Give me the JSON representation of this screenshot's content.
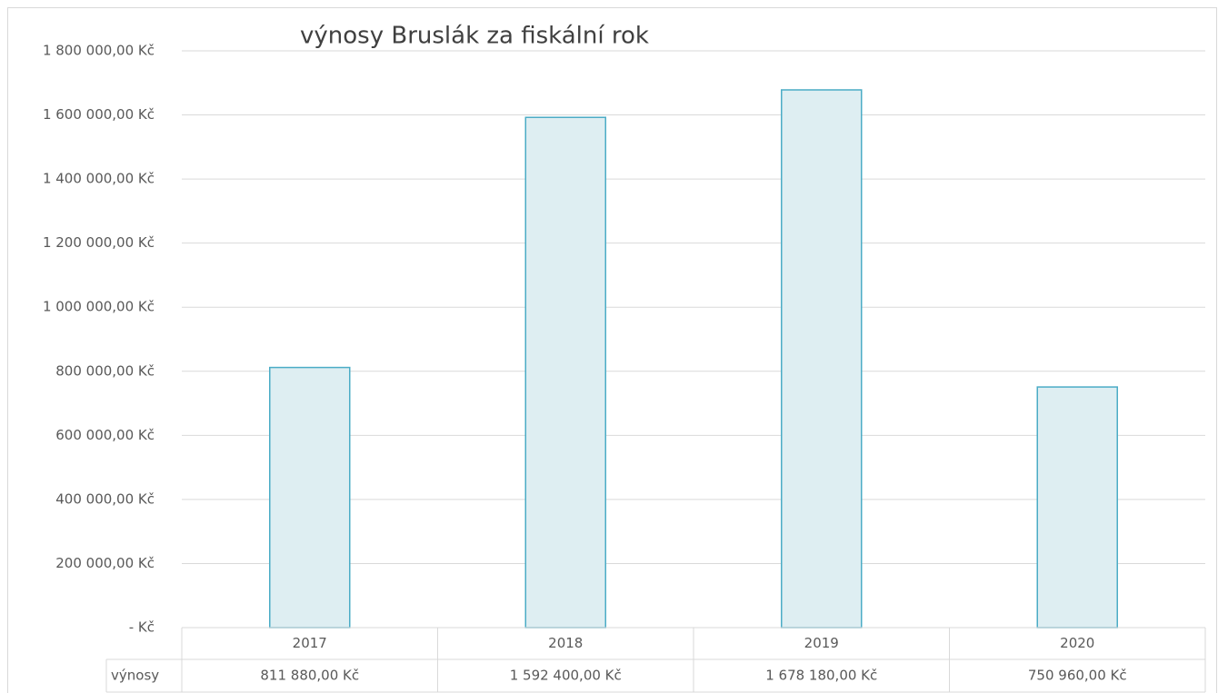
{
  "chart_data": {
    "type": "bar",
    "title": "výnosy Bruslák  za fiskální rok",
    "categories": [
      "2017",
      "2018",
      "2019",
      "2020"
    ],
    "series": [
      {
        "name": "výnosy",
        "color": "#4bacc6",
        "fill": "#deeef2",
        "values": [
          811880,
          1592400,
          1678180,
          750960
        ],
        "value_labels": [
          "811 880,00 Kč",
          "1 592 400,00 Kč",
          "1 678 180,00 Kč",
          "750 960,00 Kč"
        ]
      }
    ],
    "ylim": [
      0,
      1800000
    ],
    "yticks": [
      {
        "value": 0,
        "label": "-  Kč"
      },
      {
        "value": 200000,
        "label": "200 000,00 Kč"
      },
      {
        "value": 400000,
        "label": "400 000,00 Kč"
      },
      {
        "value": 600000,
        "label": "600 000,00 Kč"
      },
      {
        "value": 800000,
        "label": "800 000,00 Kč"
      },
      {
        "value": 1000000,
        "label": "1 000 000,00 Kč"
      },
      {
        "value": 1200000,
        "label": "1 200 000,00 Kč"
      },
      {
        "value": 1400000,
        "label": "1 400 000,00 Kč"
      },
      {
        "value": 1600000,
        "label": "1 600 000,00 Kč"
      },
      {
        "value": 1800000,
        "label": "1 800 000,00 Kč"
      }
    ],
    "grid": true,
    "data_table": true
  }
}
